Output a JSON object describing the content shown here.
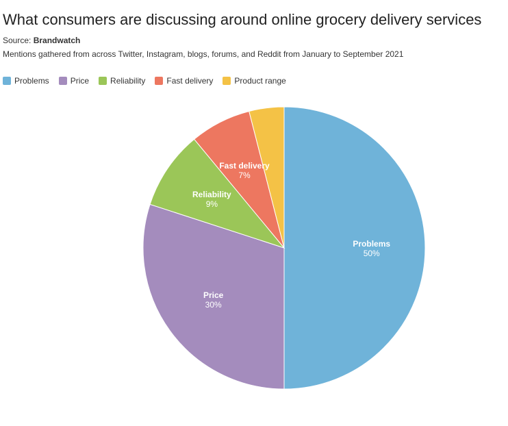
{
  "header": {
    "title": "What consumers are discussing around online grocery delivery services",
    "source_prefix": "Source: ",
    "source_name": "Brandwatch",
    "subtitle": "Mentions gathered from across Twitter, Instagram, blogs, forums, and Reddit from January to September 2021"
  },
  "chart_data": {
    "type": "pie",
    "categories": [
      "Problems",
      "Price",
      "Reliability",
      "Fast delivery",
      "Product range"
    ],
    "values": [
      50,
      30,
      9,
      7,
      4
    ],
    "value_suffix": "%",
    "colors": [
      "#6fb3d9",
      "#a48cbd",
      "#9bc658",
      "#ed7760",
      "#f4c246"
    ],
    "labeled_slices": [
      "Problems",
      "Price",
      "Reliability",
      "Fast delivery"
    ],
    "legend_position": "top-left"
  }
}
